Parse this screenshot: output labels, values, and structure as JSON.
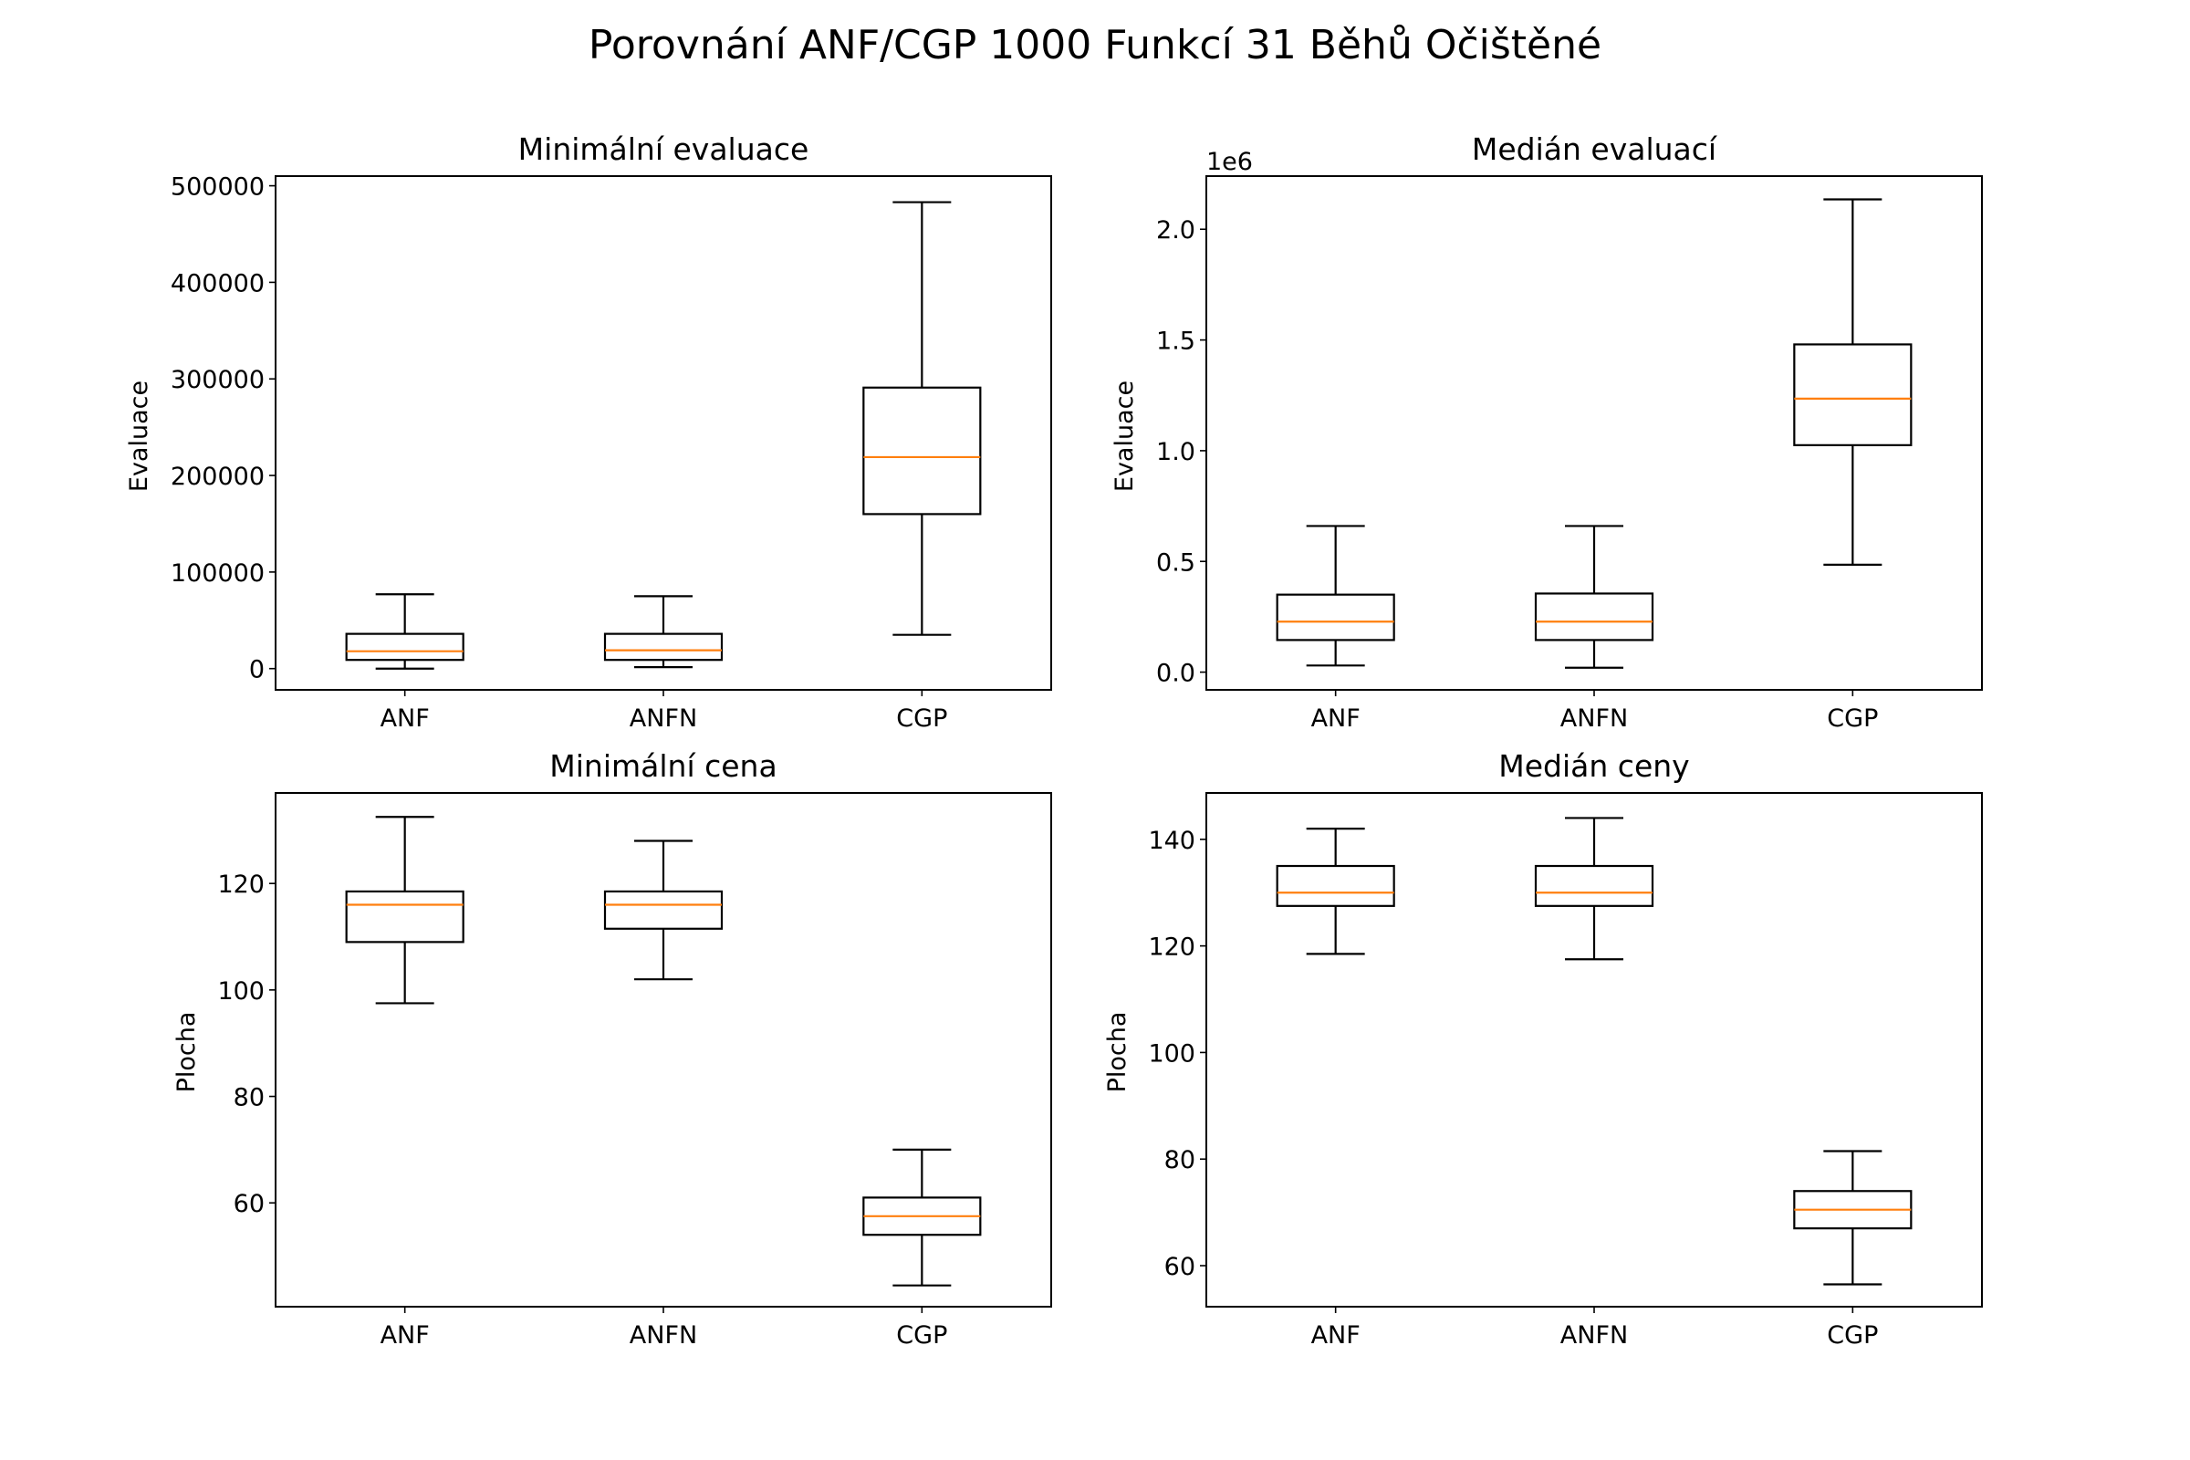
{
  "figure_title": "Porovnání ANF/CGP 1000 Funkcí 31 Běhů Očištěné",
  "colors": {
    "box": "#000000",
    "median": "#ff7f0e",
    "background": "#ffffff"
  },
  "chart_data": [
    {
      "type": "box",
      "title": "Minimální evaluace",
      "xlabel": "",
      "ylabel": "Evaluace",
      "ylim": [
        -22000,
        510000
      ],
      "yticks": [
        0,
        100000,
        200000,
        300000,
        400000,
        500000
      ],
      "ytick_labels": [
        "0",
        "100000",
        "200000",
        "300000",
        "400000",
        "500000"
      ],
      "offset_label": "",
      "categories": [
        "ANF",
        "ANFN",
        "CGP"
      ],
      "boxes": [
        {
          "whislo": 0,
          "q1": 9000,
          "med": 18000,
          "q3": 36000,
          "whishi": 77000
        },
        {
          "whislo": 1500,
          "q1": 9000,
          "med": 19000,
          "q3": 36000,
          "whishi": 75000
        },
        {
          "whislo": 35000,
          "q1": 160000,
          "med": 219000,
          "q3": 291000,
          "whishi": 483000
        }
      ]
    },
    {
      "type": "box",
      "title": "Medián evaluací",
      "xlabel": "",
      "ylabel": "Evaluace",
      "ylim": [
        -80000,
        2240000
      ],
      "yticks": [
        0,
        500000,
        1000000,
        1500000,
        2000000
      ],
      "ytick_labels": [
        "0.0",
        "0.5",
        "1.0",
        "1.5",
        "2.0"
      ],
      "offset_label": "1e6",
      "categories": [
        "ANF",
        "ANFN",
        "CGP"
      ],
      "boxes": [
        {
          "whislo": 30000,
          "q1": 145000,
          "med": 228000,
          "q3": 350000,
          "whishi": 660000
        },
        {
          "whislo": 20000,
          "q1": 145000,
          "med": 228000,
          "q3": 355000,
          "whishi": 660000
        },
        {
          "whislo": 485000,
          "q1": 1025000,
          "med": 1235000,
          "q3": 1480000,
          "whishi": 2135000
        }
      ]
    },
    {
      "type": "box",
      "title": "Minimální cena",
      "xlabel": "",
      "ylabel": "Plocha",
      "ylim": [
        40.5,
        137
      ],
      "yticks": [
        60,
        80,
        100,
        120
      ],
      "ytick_labels": [
        "60",
        "80",
        "100",
        "120"
      ],
      "offset_label": "",
      "categories": [
        "ANF",
        "ANFN",
        "CGP"
      ],
      "boxes": [
        {
          "whislo": 97.5,
          "q1": 109,
          "med": 116,
          "q3": 118.5,
          "whishi": 132.5
        },
        {
          "whislo": 102,
          "q1": 111.5,
          "med": 116,
          "q3": 118.5,
          "whishi": 128
        },
        {
          "whislo": 44.5,
          "q1": 54,
          "med": 57.5,
          "q3": 61,
          "whishi": 70
        }
      ]
    },
    {
      "type": "box",
      "title": "Medián ceny",
      "xlabel": "",
      "ylabel": "Plocha",
      "ylim": [
        52.3,
        148.7
      ],
      "yticks": [
        60,
        80,
        100,
        120,
        140
      ],
      "ytick_labels": [
        "60",
        "80",
        "100",
        "120",
        "140"
      ],
      "offset_label": "",
      "categories": [
        "ANF",
        "ANFN",
        "CGP"
      ],
      "boxes": [
        {
          "whislo": 118.5,
          "q1": 127.5,
          "med": 130,
          "q3": 135,
          "whishi": 142
        },
        {
          "whislo": 117.5,
          "q1": 127.5,
          "med": 130,
          "q3": 135,
          "whishi": 144
        },
        {
          "whislo": 56.5,
          "q1": 67,
          "med": 70.5,
          "q3": 74,
          "whishi": 81.5
        }
      ]
    }
  ]
}
